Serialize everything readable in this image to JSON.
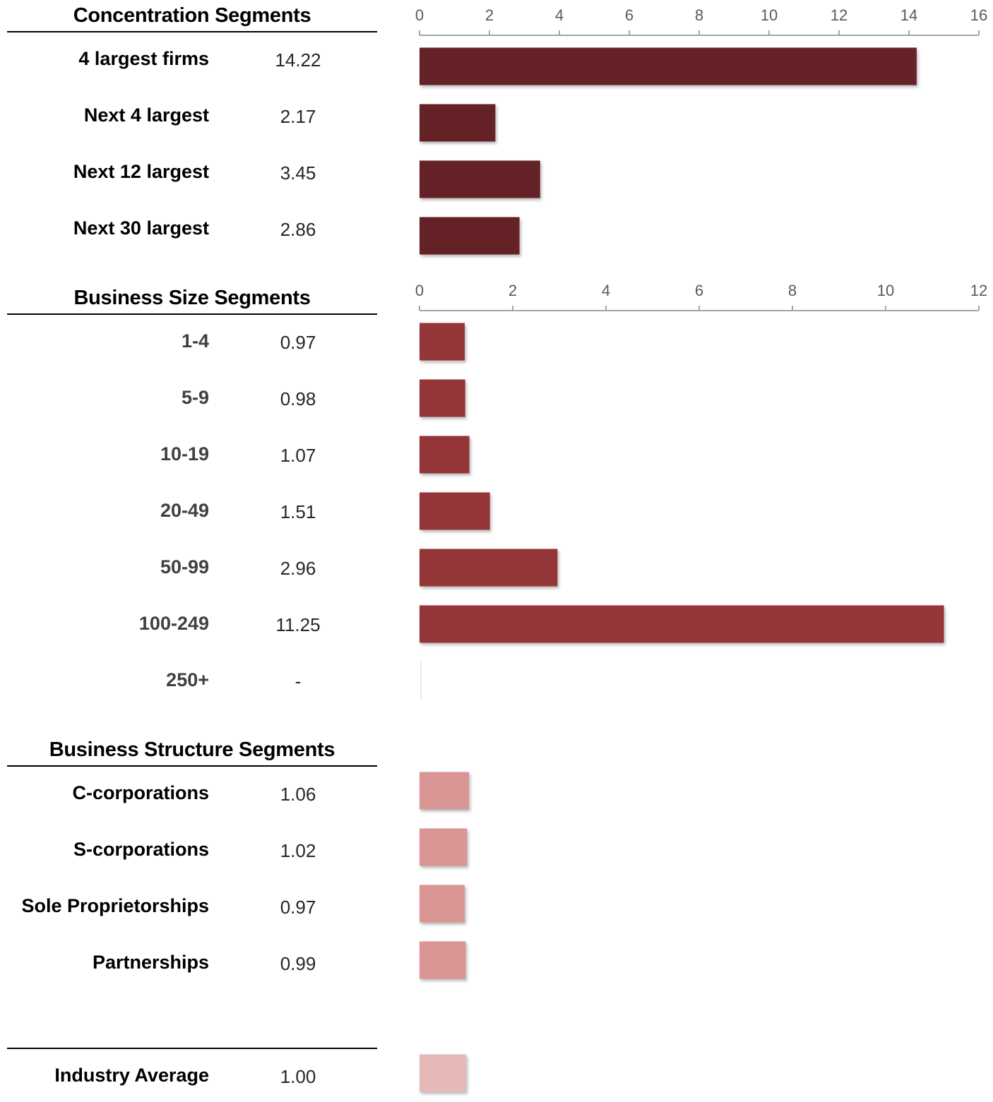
{
  "colors": {
    "concentration": "#652426",
    "size": "#943638",
    "structure": "#d99594",
    "average": "#e6b9b8",
    "axis": "#a6a6a6",
    "tick_text": "#595959"
  },
  "sections": [
    {
      "title": "Concentration Segments",
      "rows": [
        {
          "label": "4 largest firms",
          "value": "14.22"
        },
        {
          "label": "Next 4 largest",
          "value": "2.17"
        },
        {
          "label": "Next 12 largest",
          "value": "3.45"
        },
        {
          "label": "Next 30 largest",
          "value": "2.86"
        }
      ]
    },
    {
      "title": "Business Size Segments",
      "rows": [
        {
          "label": "1-4",
          "value": "0.97"
        },
        {
          "label": "5-9",
          "value": "0.98"
        },
        {
          "label": "10-19",
          "value": "1.07"
        },
        {
          "label": "20-49",
          "value": "1.51"
        },
        {
          "label": "50-99",
          "value": "2.96"
        },
        {
          "label": "100-249",
          "value": "11.25"
        },
        {
          "label": "250+",
          "value": "-"
        }
      ]
    },
    {
      "title": "Business Structure Segments",
      "rows": [
        {
          "label": "C-corporations",
          "value": "1.06"
        },
        {
          "label": "S-corporations",
          "value": "1.02"
        },
        {
          "label": "Sole Proprietorships",
          "value": "0.97"
        },
        {
          "label": "Partnerships",
          "value": "0.99"
        }
      ]
    },
    {
      "title": "",
      "rows": [
        {
          "label": "Industry Average",
          "value": "1.00"
        }
      ]
    }
  ],
  "chart_data": [
    {
      "type": "bar",
      "orientation": "horizontal",
      "categories": [
        "4 largest firms",
        "Next 4 largest",
        "Next 12 largest",
        "Next 30 largest"
      ],
      "values": [
        14.22,
        2.17,
        3.45,
        2.86
      ],
      "xlim": [
        0,
        16
      ],
      "ticks": [
        0,
        2,
        4,
        6,
        8,
        10,
        12,
        14,
        16
      ],
      "axis_position": "top",
      "grid": false
    },
    {
      "type": "bar",
      "orientation": "horizontal",
      "categories": [
        "1-4",
        "5-9",
        "10-19",
        "20-49",
        "50-99",
        "100-249",
        "250+"
      ],
      "values": [
        0.97,
        0.98,
        1.07,
        1.51,
        2.96,
        11.25,
        0
      ],
      "xlim": [
        0,
        12
      ],
      "ticks": [
        0,
        2,
        4,
        6,
        8,
        10,
        12
      ],
      "axis_position": "top",
      "grid": false
    },
    {
      "type": "bar",
      "orientation": "horizontal",
      "categories": [
        "C-corporations",
        "S-corporations",
        "Sole Proprietorships",
        "Partnerships"
      ],
      "values": [
        1.06,
        1.02,
        0.97,
        0.99
      ],
      "xlim": [
        0,
        12
      ],
      "axis_visible": false,
      "grid": false
    },
    {
      "type": "bar",
      "orientation": "horizontal",
      "categories": [
        "Industry Average"
      ],
      "values": [
        1.0
      ],
      "xlim": [
        0,
        12
      ],
      "axis_visible": false,
      "grid": false
    }
  ]
}
